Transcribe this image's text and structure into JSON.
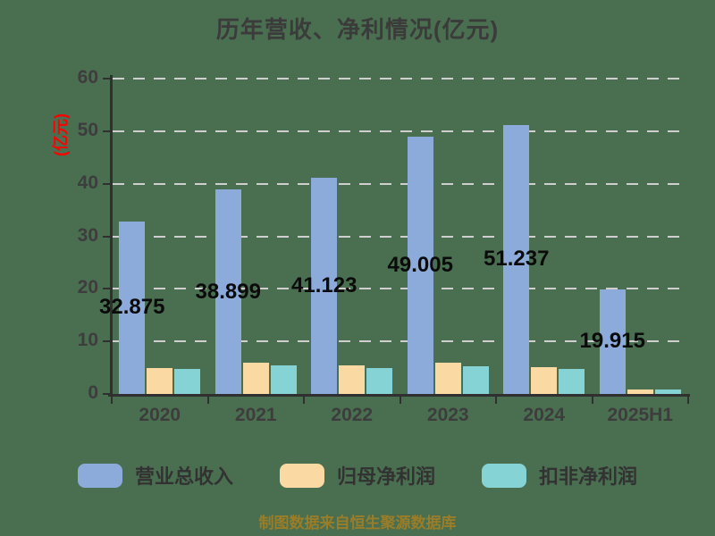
{
  "background_color": "#4A6F50",
  "chart_data": {
    "type": "bar",
    "title": "历年营收、净利情况(亿元)",
    "ylabel": "(亿元)",
    "ylabel_color": "#FF0000",
    "xlabel": "",
    "categories": [
      "2020",
      "2021",
      "2022",
      "2023",
      "2024",
      "2025H1"
    ],
    "series": [
      {
        "name": "营业总收入",
        "color": "#8CABDB",
        "values": [
          32.875,
          38.899,
          41.123,
          49.005,
          51.237,
          19.915
        ],
        "data_labels": [
          "32.875",
          "38.899",
          "41.123",
          "49.005",
          "51.237",
          "19.915"
        ]
      },
      {
        "name": "归母净利润",
        "color": "#FBD9A2",
        "values": [
          5.0,
          6.0,
          5.5,
          6.0,
          5.1,
          0.9
        ]
      },
      {
        "name": "扣非净利润",
        "color": "#86D3D6",
        "values": [
          4.8,
          5.4,
          5.0,
          5.3,
          4.8,
          0.8
        ]
      }
    ],
    "ylim": [
      0,
      60
    ],
    "yticks": [
      0,
      10,
      20,
      30,
      40,
      50,
      60
    ],
    "grid": true,
    "gridline_color": "#CFCFCF",
    "axis_color": "#303030",
    "tick_label_color": "#3D3D3D",
    "legend_position": "bottom"
  },
  "footer": {
    "text": "制图数据来自恒生聚源数据库",
    "color": "#9A7D28"
  }
}
